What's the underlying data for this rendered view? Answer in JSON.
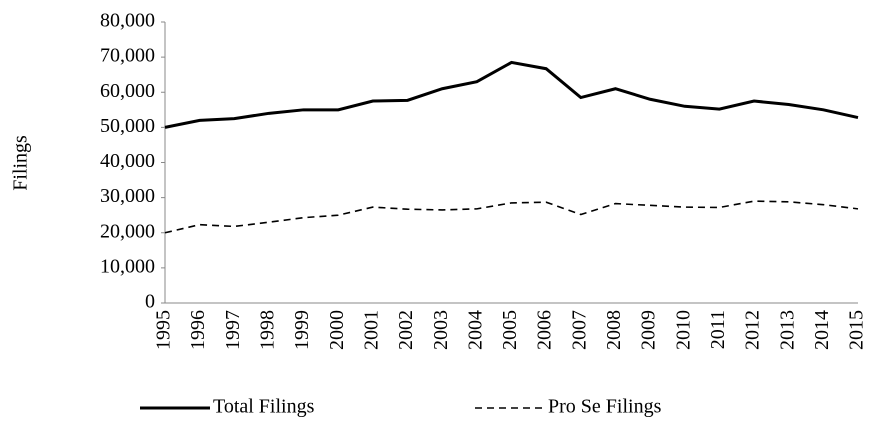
{
  "chart_data": {
    "type": "line",
    "y_label": "Filings",
    "categories": [
      "1995",
      "1996",
      "1997",
      "1998",
      "1999",
      "2000",
      "2001",
      "2002",
      "2003",
      "2004",
      "2005",
      "2006",
      "2007",
      "2008",
      "2009",
      "2010",
      "2011",
      "2012",
      "2013",
      "2014",
      "2015"
    ],
    "series": [
      {
        "name": "Total Filings",
        "color": "#000000",
        "line_style": "solid",
        "values": [
          50000,
          52000,
          52500,
          54000,
          55000,
          55000,
          57500,
          57700,
          61000,
          63000,
          68500,
          66700,
          58500,
          61000,
          58000,
          56000,
          55200,
          57500,
          56500,
          55000,
          52800
        ]
      },
      {
        "name": "Pro Se Filings",
        "color": "#000000",
        "line_style": "dashed",
        "values": [
          20000,
          22300,
          21800,
          23000,
          24300,
          25000,
          27300,
          26700,
          26500,
          26800,
          28500,
          28700,
          25200,
          28300,
          27800,
          27300,
          27200,
          29000,
          28800,
          28000,
          26800
        ]
      }
    ],
    "ylim": [
      0,
      80000
    ],
    "yticks": [
      0,
      {
        "value": 10000,
        "label": "10,000"
      },
      {
        "value": 20000,
        "label": "20,000"
      },
      {
        "value": 30000,
        "label": "30,000"
      },
      {
        "value": 40000,
        "label": "40,000"
      },
      {
        "value": 50000,
        "label": "50,000"
      },
      {
        "value": 60000,
        "label": "60,000"
      },
      {
        "value": 70000,
        "label": "70,000"
      },
      {
        "value": 80000,
        "label": "80,000"
      }
    ],
    "grid": false,
    "legend": "bottom"
  }
}
